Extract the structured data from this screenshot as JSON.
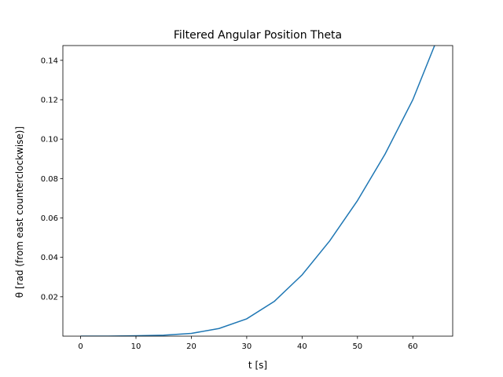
{
  "chart_data": {
    "type": "line",
    "title": "Filtered Angular Position Theta",
    "xlabel": "t [s]",
    "ylabel": "θ [rad (from east counterclockwise)]",
    "xlim": [
      -3.2,
      67.2
    ],
    "ylim": [
      0.0,
      0.1475
    ],
    "x_ticks": [
      0,
      10,
      20,
      30,
      40,
      50,
      60
    ],
    "x_tick_labels": [
      "0",
      "10",
      "20",
      "30",
      "40",
      "50",
      "60"
    ],
    "y_ticks": [
      0.02,
      0.04,
      0.06,
      0.08,
      0.1,
      0.12,
      0.14
    ],
    "y_tick_labels": [
      "0.02",
      "0.04",
      "0.06",
      "0.08",
      "0.10",
      "0.12",
      "0.14"
    ],
    "grid": false,
    "series": [
      {
        "color": "#1f77b4",
        "x": [
          0,
          5,
          10,
          15,
          20,
          25,
          30,
          35,
          40,
          45,
          50,
          55,
          60,
          64
        ],
        "y": [
          0.0,
          0.0,
          0.0002,
          0.0005,
          0.0014,
          0.0039,
          0.0088,
          0.0177,
          0.0311,
          0.0484,
          0.0688,
          0.0925,
          0.12,
          0.148
        ]
      }
    ]
  }
}
